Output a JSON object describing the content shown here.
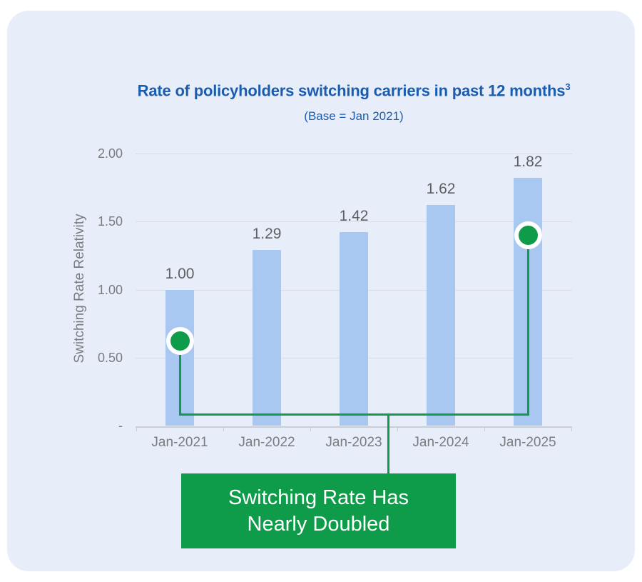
{
  "chart": {
    "title": "Rate of policyholders switching carriers in past 12 months",
    "title_superscript": "3",
    "subtitle": "(Base = Jan 2021)",
    "y_axis_title": "Switching Rate Relativity"
  },
  "chart_data": {
    "type": "bar",
    "title": "Rate of policyholders switching carriers in past 12 months³",
    "subtitle": "(Base = Jan 2021)",
    "ylabel": "Switching Rate Relativity",
    "xlabel": "",
    "categories": [
      "Jan-2021",
      "Jan-2022",
      "Jan-2023",
      "Jan-2024",
      "Jan-2025"
    ],
    "values": [
      1.0,
      1.29,
      1.42,
      1.62,
      1.82
    ],
    "data_labels": [
      "1.00",
      "1.29",
      "1.42",
      "1.62",
      "1.82"
    ],
    "ylim": [
      0,
      2.0
    ],
    "yticks": [
      {
        "value": 2.0,
        "label": "2.00"
      },
      {
        "value": 1.5,
        "label": "1.50"
      },
      {
        "value": 1.0,
        "label": "1.00"
      },
      {
        "value": 0.5,
        "label": "0.50"
      },
      {
        "value": 0.0,
        "label": "-"
      }
    ],
    "grid": "horizontal",
    "legend": "none",
    "bar_color": "#a9c8f1"
  },
  "annotation": {
    "line1": "Switching Rate Has",
    "line2": "Nearly Doubled",
    "color": "#0f9c4a",
    "markers": [
      {
        "category_index": 0,
        "value": 0.62
      },
      {
        "category_index": 4,
        "value": 1.4
      }
    ]
  },
  "colors": {
    "card_background": "#e8eef9",
    "title_blue": "#1a5cb0",
    "axis_gray": "#797c80",
    "data_label_gray": "#5c5f63",
    "bar_blue": "#a9c8f1",
    "annotation_green": "#0f9c4a"
  }
}
